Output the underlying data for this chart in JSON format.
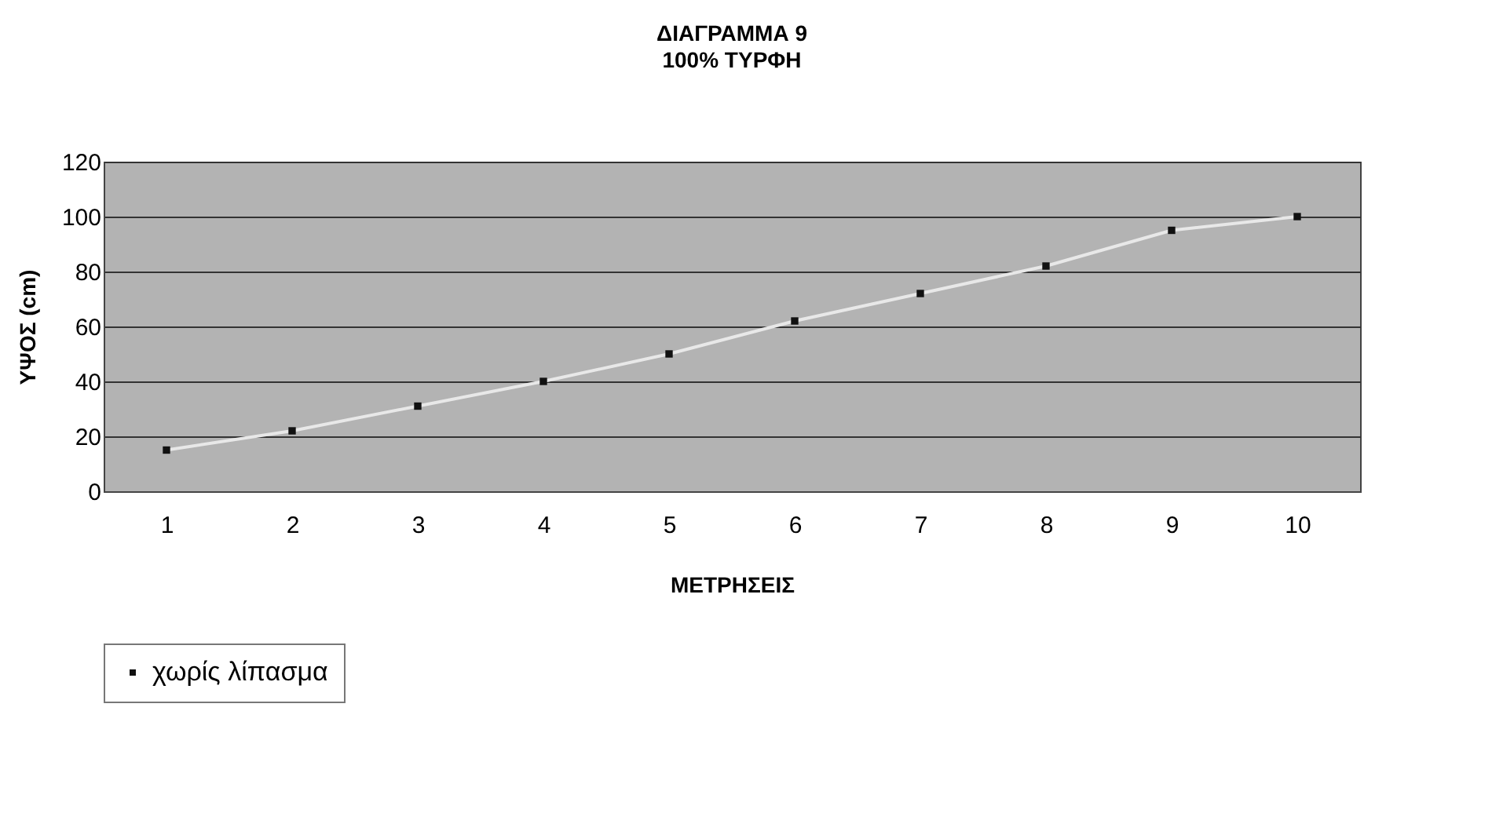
{
  "chart_data": {
    "type": "line",
    "title": "ΔΙΑΓΡΑΜΜΑ 9",
    "subtitle": "100% ΤΥΡΦΗ",
    "xlabel": "ΜΕΤΡΗΣΕΙΣ",
    "ylabel": "ΥΨΟΣ (cm)",
    "categories": [
      "1",
      "2",
      "3",
      "4",
      "5",
      "6",
      "7",
      "8",
      "9",
      "10"
    ],
    "series": [
      {
        "name": "χωρίς λίπασμα",
        "color": "#111111",
        "values": [
          15,
          22,
          31,
          40,
          50,
          62,
          72,
          82,
          95,
          100
        ]
      }
    ],
    "ylim": [
      0,
      120
    ],
    "yticks": [
      0,
      20,
      40,
      60,
      80,
      100,
      120
    ],
    "grid": "y",
    "legend": "bottom",
    "marker": "square"
  }
}
